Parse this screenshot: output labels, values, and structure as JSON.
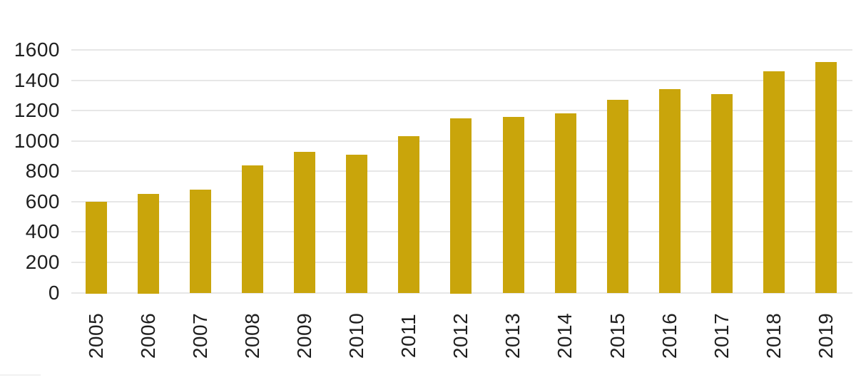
{
  "chart_data": {
    "type": "bar",
    "title": "",
    "xlabel": "",
    "ylabel": "",
    "categories": [
      "2005",
      "2006",
      "2007",
      "2008",
      "2009",
      "2010",
      "2011",
      "2012",
      "2013",
      "2014",
      "2015",
      "2016",
      "2017",
      "2018",
      "2019"
    ],
    "values": [
      600,
      650,
      680,
      840,
      930,
      910,
      1030,
      1150,
      1160,
      1180,
      1270,
      1340,
      1310,
      1460,
      1520
    ],
    "ylim": [
      0,
      1600
    ],
    "yticks": [
      0,
      200,
      400,
      600,
      800,
      1000,
      1200,
      1400,
      1600
    ],
    "ytick_labels": [
      "0",
      "200",
      "400",
      "600",
      "800",
      "1000",
      "1200",
      "1400",
      "1600"
    ],
    "grid": true,
    "legend": "none",
    "x_tick_rotation": -90,
    "colors": {
      "bar": "#C9A50B",
      "gridline": "#E7E7E7",
      "text": "#1F1F1F",
      "background": "#FFFFFF"
    }
  }
}
